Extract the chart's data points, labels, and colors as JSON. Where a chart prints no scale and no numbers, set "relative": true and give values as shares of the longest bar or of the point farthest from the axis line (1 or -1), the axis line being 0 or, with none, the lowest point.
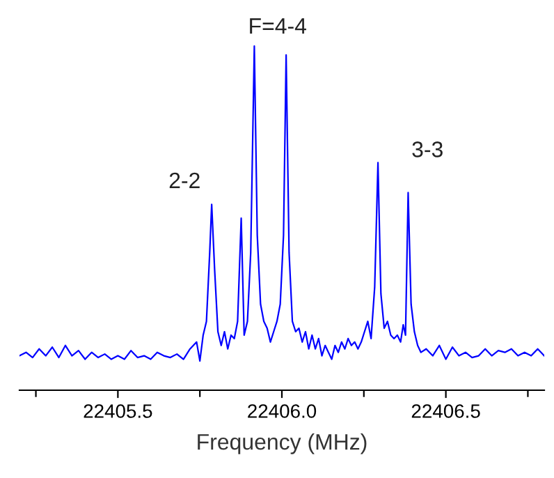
{
  "chart_data": {
    "type": "line",
    "relative": true,
    "xlabel": "Frequency (MHz)",
    "xlim": [
      22405.2,
      22406.8
    ],
    "xticks": [
      {
        "value": 22405.25,
        "label": null
      },
      {
        "value": 22405.5,
        "label": "22405.5"
      },
      {
        "value": 22405.75,
        "label": null
      },
      {
        "value": 22406.0,
        "label": "22406.0"
      },
      {
        "value": 22406.25,
        "label": null
      },
      {
        "value": 22406.5,
        "label": "22406.5"
      },
      {
        "value": 22406.75,
        "label": null
      }
    ],
    "tick_labels": "x",
    "grid": false,
    "marker": "none",
    "line_style": "solid",
    "annotations": [
      {
        "text": "2-2",
        "x": 22405.786,
        "y": 0.54
      },
      {
        "text": "F=4-4",
        "x": 22405.916,
        "y": 1.0
      },
      {
        "text": "3-3",
        "x": 22406.385,
        "y": 0.574
      }
    ],
    "series": [
      {
        "color": "#0000ff",
        "x": [
          22405.2,
          22405.22,
          22405.24,
          22405.26,
          22405.28,
          22405.3,
          22405.32,
          22405.34,
          22405.36,
          22405.38,
          22405.4,
          22405.42,
          22405.44,
          22405.46,
          22405.48,
          22405.5,
          22405.52,
          22405.54,
          22405.56,
          22405.58,
          22405.6,
          22405.62,
          22405.64,
          22405.66,
          22405.68,
          22405.7,
          22405.72,
          22405.74,
          22405.75,
          22405.76,
          22405.77,
          22405.78,
          22405.786,
          22405.795,
          22405.805,
          22405.815,
          22405.825,
          22405.835,
          22405.845,
          22405.855,
          22405.865,
          22405.876,
          22405.885,
          22405.895,
          22405.905,
          22405.916,
          22405.925,
          22405.935,
          22405.945,
          22405.955,
          22405.965,
          22405.975,
          22405.985,
          22405.995,
          22406.005,
          22406.013,
          22406.022,
          22406.032,
          22406.042,
          22406.052,
          22406.062,
          22406.072,
          22406.082,
          22406.092,
          22406.102,
          22406.112,
          22406.122,
          22406.132,
          22406.142,
          22406.152,
          22406.162,
          22406.172,
          22406.182,
          22406.192,
          22406.202,
          22406.212,
          22406.222,
          22406.232,
          22406.242,
          22406.252,
          22406.262,
          22406.272,
          22406.283,
          22406.293,
          22406.302,
          22406.312,
          22406.322,
          22406.332,
          22406.342,
          22406.352,
          22406.362,
          22406.37,
          22406.377,
          22406.385,
          22406.394,
          22406.404,
          22406.414,
          22406.424,
          22406.44,
          22406.46,
          22406.48,
          22406.5,
          22406.52,
          22406.54,
          22406.56,
          22406.58,
          22406.6,
          22406.62,
          22406.64,
          22406.66,
          22406.68,
          22406.7,
          22406.72,
          22406.74,
          22406.76,
          22406.78,
          22406.8
        ],
        "values": [
          0.1,
          0.11,
          0.095,
          0.12,
          0.1,
          0.125,
          0.095,
          0.13,
          0.1,
          0.115,
          0.09,
          0.11,
          0.095,
          0.105,
          0.09,
          0.1,
          0.09,
          0.115,
          0.095,
          0.1,
          0.09,
          0.11,
          0.1,
          0.095,
          0.105,
          0.09,
          0.12,
          0.14,
          0.085,
          0.16,
          0.2,
          0.4,
          0.54,
          0.35,
          0.17,
          0.13,
          0.17,
          0.12,
          0.16,
          0.15,
          0.2,
          0.5,
          0.16,
          0.2,
          0.4,
          1.0,
          0.45,
          0.25,
          0.2,
          0.18,
          0.14,
          0.17,
          0.2,
          0.25,
          0.45,
          0.974,
          0.4,
          0.2,
          0.17,
          0.18,
          0.14,
          0.17,
          0.12,
          0.16,
          0.12,
          0.15,
          0.1,
          0.13,
          0.11,
          0.09,
          0.13,
          0.11,
          0.14,
          0.12,
          0.15,
          0.13,
          0.14,
          0.12,
          0.14,
          0.17,
          0.2,
          0.15,
          0.3,
          0.661,
          0.28,
          0.18,
          0.2,
          0.16,
          0.15,
          0.16,
          0.14,
          0.19,
          0.16,
          0.574,
          0.25,
          0.17,
          0.13,
          0.11,
          0.12,
          0.1,
          0.13,
          0.09,
          0.125,
          0.1,
          0.11,
          0.095,
          0.1,
          0.12,
          0.1,
          0.115,
          0.11,
          0.12,
          0.1,
          0.11,
          0.1,
          0.12,
          0.1
        ]
      }
    ]
  }
}
